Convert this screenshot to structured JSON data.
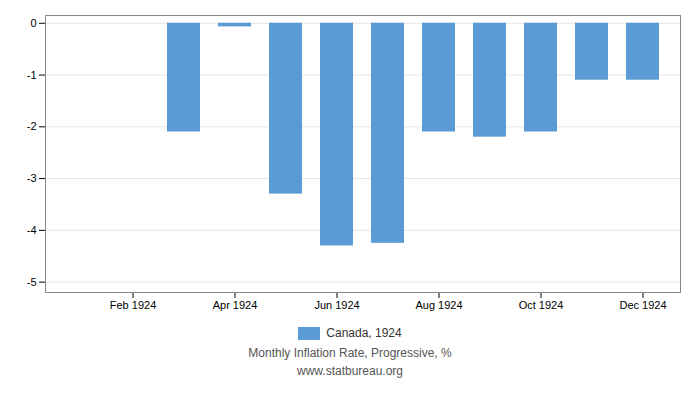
{
  "chart_data": {
    "type": "bar",
    "title": "Monthly Inflation Rate, Progressive, %",
    "subtitle": "www.statbureau.org",
    "categories": [
      null,
      "Feb 1924",
      null,
      "Apr 1924",
      null,
      "Jun 1924",
      null,
      "Aug 1924",
      null,
      "Oct 1924",
      null,
      "Dec 1924"
    ],
    "series": [
      {
        "name": "Canada, 1924",
        "color": "#5b9bd5",
        "values": [
          0,
          0,
          -2.1,
          -0.07,
          -3.3,
          -4.3,
          -4.25,
          -2.1,
          -2.2,
          -2.1,
          -1.1,
          -1.1
        ]
      }
    ],
    "ylim": [
      -5.2,
      0.15
    ],
    "yticks": [
      0,
      -1,
      -2,
      -3,
      -4,
      -5
    ],
    "grid": true,
    "legend": "bottom"
  }
}
